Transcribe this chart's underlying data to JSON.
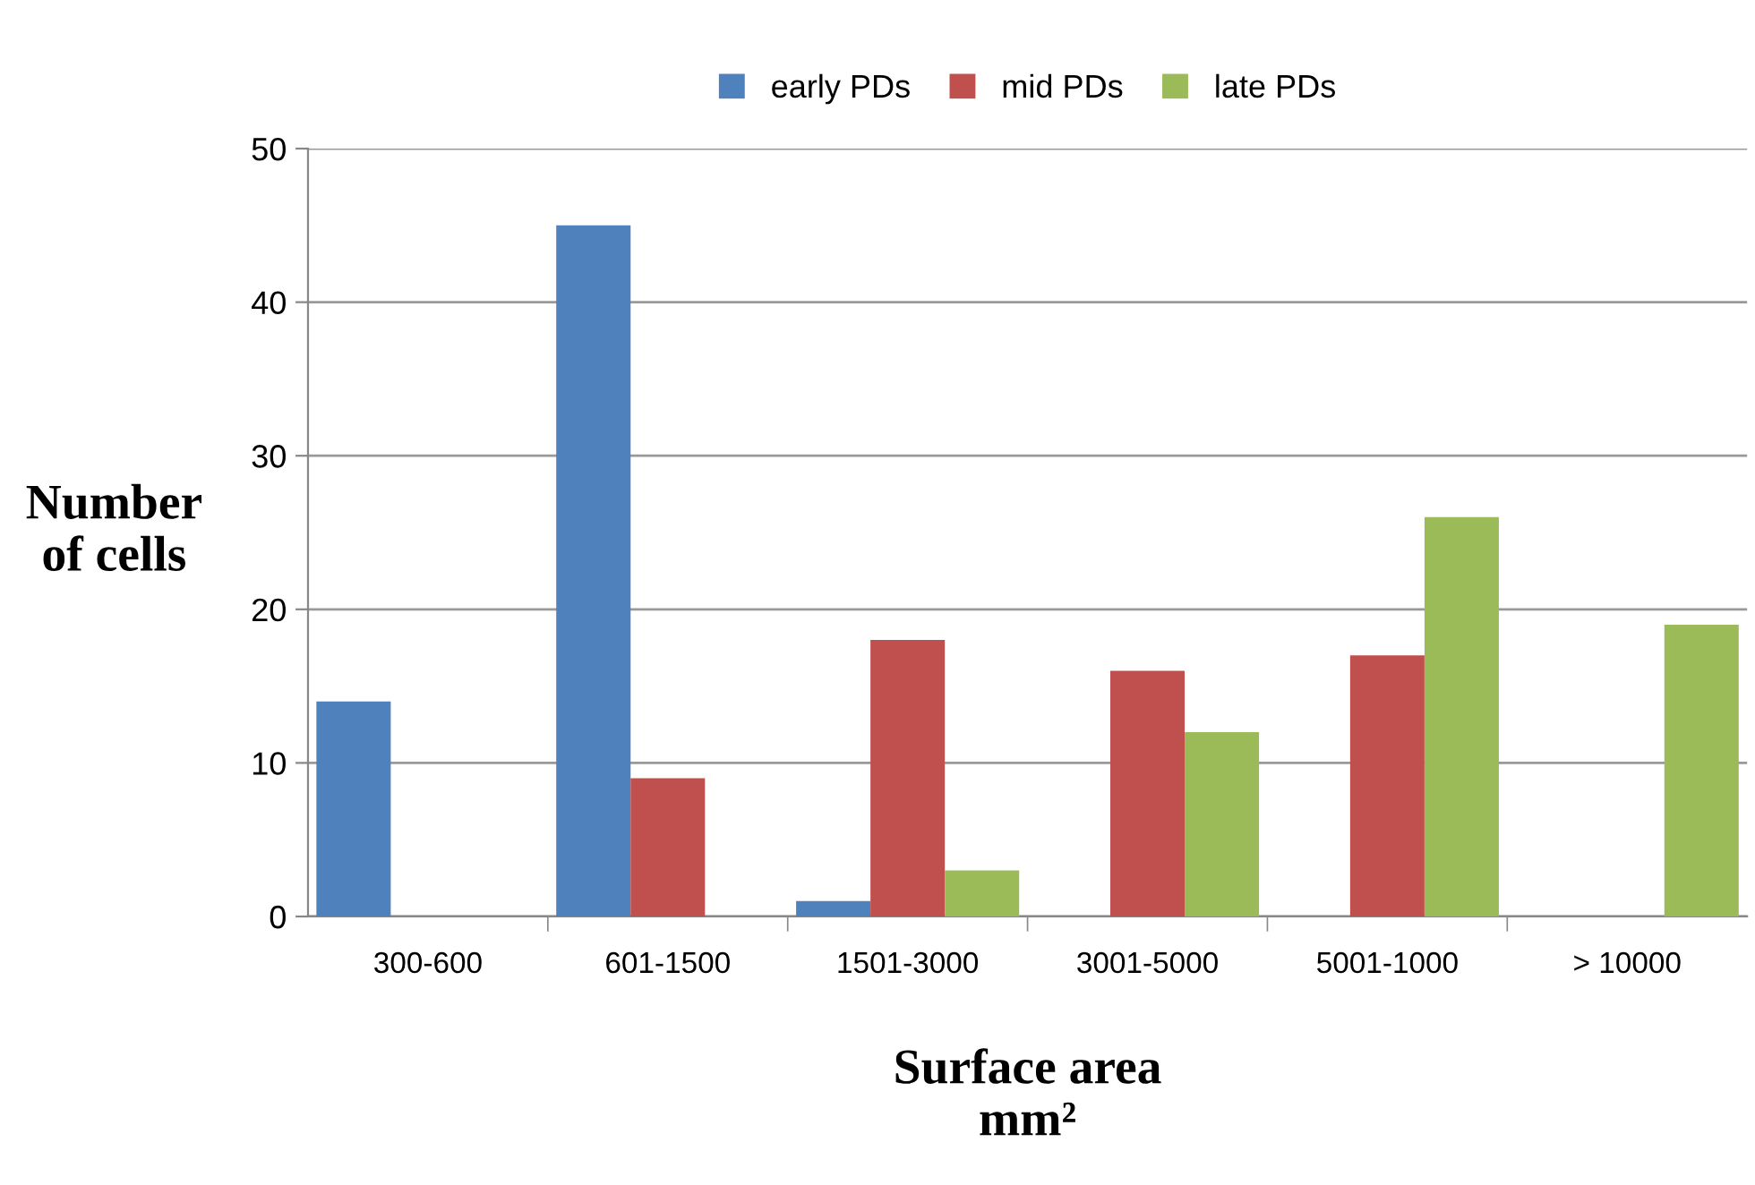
{
  "chart_data": {
    "type": "bar",
    "categories": [
      "300-600",
      "601-1500",
      "1501-3000",
      "3001-5000",
      "5001-1000",
      "> 10000"
    ],
    "series": [
      {
        "name": "early PDs",
        "color": "#4f81bd",
        "values": [
          14,
          45,
          1,
          0,
          0,
          0
        ]
      },
      {
        "name": "mid PDs",
        "color": "#c0504d",
        "values": [
          0,
          9,
          18,
          16,
          17,
          0
        ]
      },
      {
        "name": "late PDs",
        "color": "#9bbb59",
        "values": [
          0,
          0,
          3,
          12,
          26,
          19
        ]
      }
    ],
    "xlabel": "Surface area\nmm²",
    "ylabel": "Number\nof cells",
    "ylim": [
      0,
      50
    ],
    "yticks": [
      0,
      10,
      20,
      30,
      40,
      50
    ],
    "grid": "y",
    "legend": "top"
  }
}
